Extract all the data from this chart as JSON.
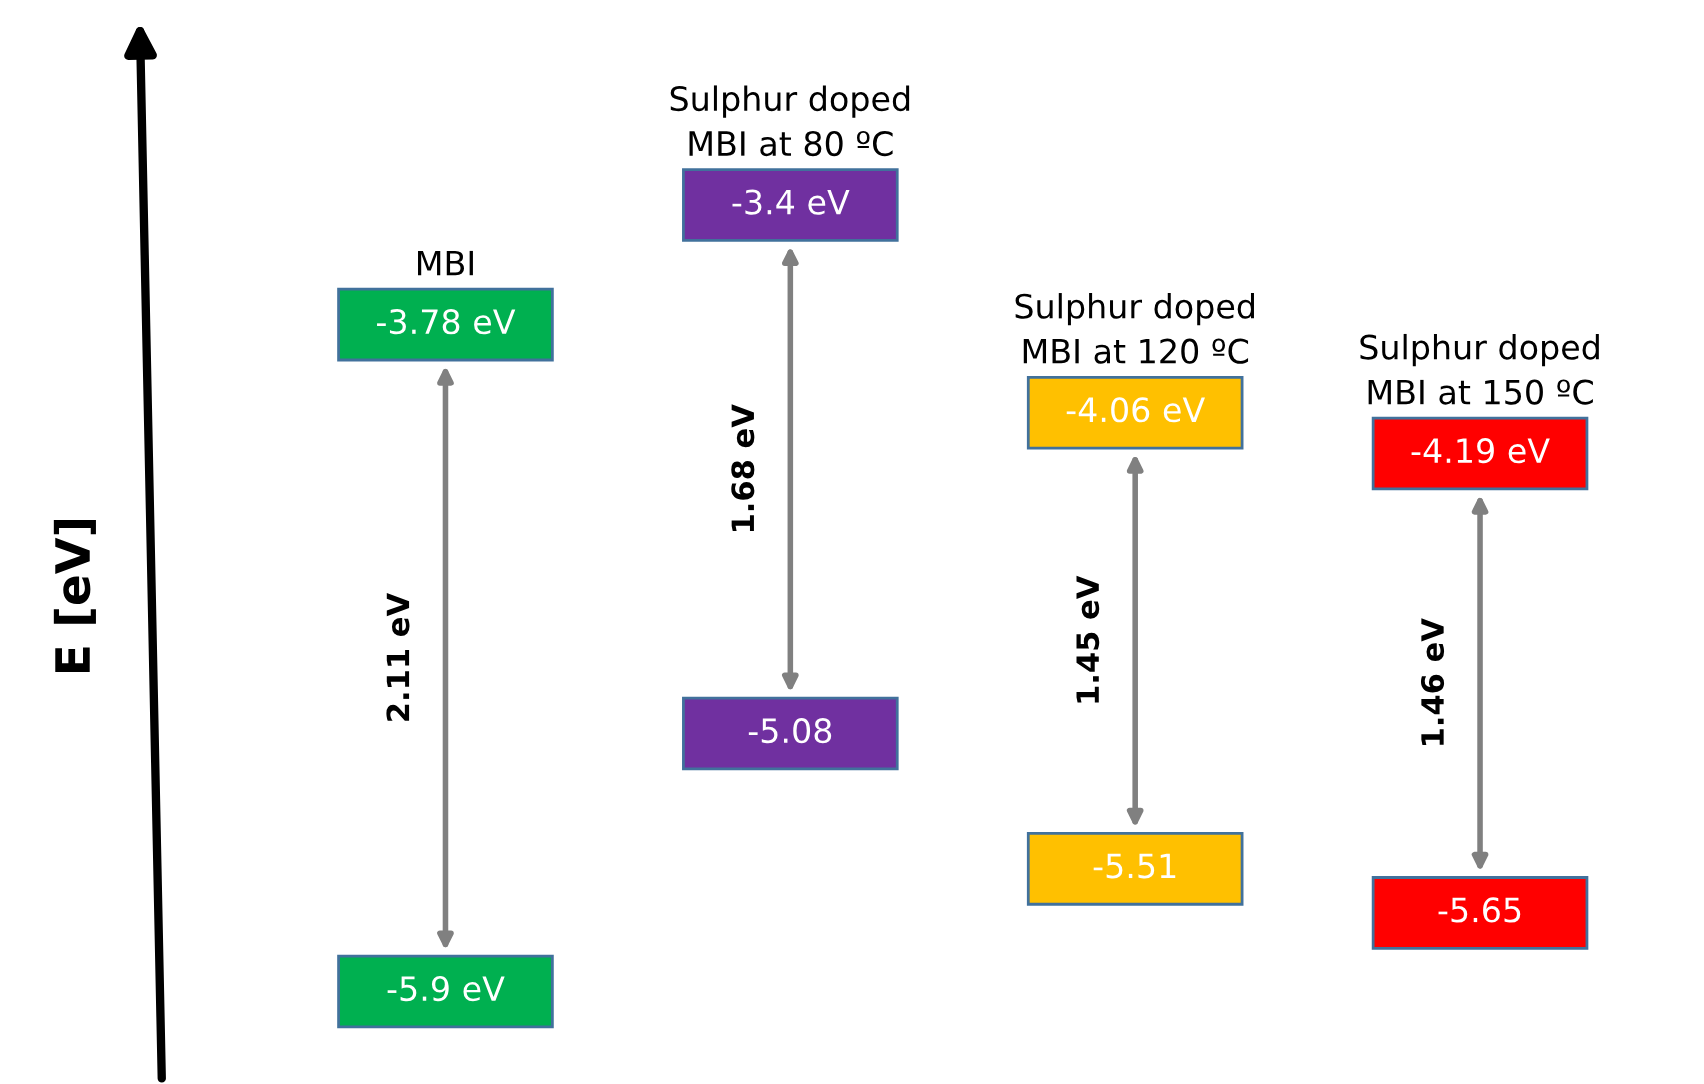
{
  "chart_data": {
    "type": "other",
    "ylabel": "E [eV]",
    "categories": [
      "MBI",
      "Sulphur doped\nMBI at 80 ºC",
      "Sulphur doped\nMBI at 120 ºC",
      "Sulphur doped\nMBI at 150 ºC"
    ],
    "series": [
      {
        "colors": [
          "#00b050",
          "#7030a0",
          "#ffc000",
          "#ff0000"
        ],
        "values": [
          -3.78,
          -3.4,
          -4.06,
          -4.19
        ],
        "value_labels": [
          "-3.78 eV",
          "-3.4 eV",
          "-4.06 eV",
          "-4.19 eV"
        ]
      },
      {
        "colors": [
          "#00b050",
          "#7030a0",
          "#ffc000",
          "#ff0000"
        ],
        "values": [
          -5.9,
          -5.08,
          -5.51,
          -5.65
        ],
        "value_labels": [
          "-5.9 eV",
          "-5.08",
          "-5.51",
          "-5.65"
        ]
      }
    ],
    "annotations": [
      "2.11 eV",
      "1.68 eV",
      "1.45 eV",
      "1.46 eV"
    ]
  }
}
